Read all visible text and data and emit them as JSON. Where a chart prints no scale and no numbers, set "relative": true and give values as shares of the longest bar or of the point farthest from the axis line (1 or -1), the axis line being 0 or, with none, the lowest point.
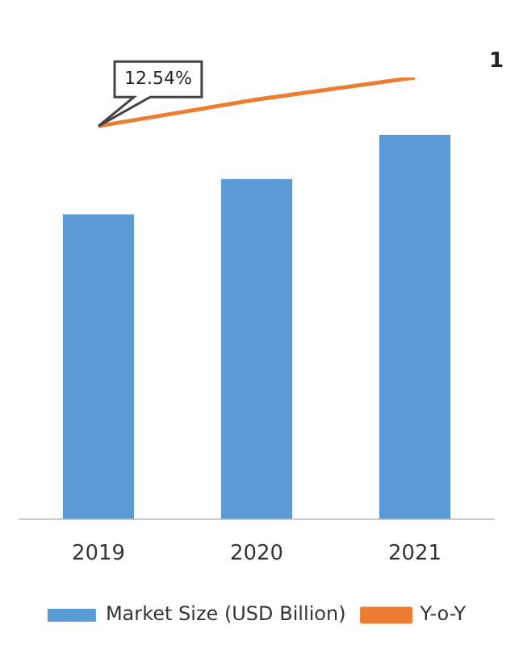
{
  "chart_data": {
    "type": "bar",
    "relative": true,
    "categories": [
      "2019",
      "2020",
      "2021"
    ],
    "series": [
      {
        "name": "Market Size (USD Billion)",
        "color": "#5b9bd5",
        "values": [
          0.69,
          0.77,
          0.87
        ]
      },
      {
        "name": "Y-o-Y",
        "type": "line",
        "color": "#ed7d31",
        "values": [
          0.89,
          0.95,
          1
        ]
      }
    ],
    "annotations": [
      {
        "text": "12.54%",
        "x": "2019",
        "y": 0.89
      },
      "1"
    ],
    "grid": false,
    "legend": "bottom",
    "marker": "none"
  }
}
